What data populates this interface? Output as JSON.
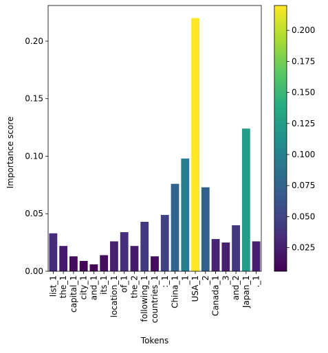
{
  "chart_data": {
    "type": "bar",
    "xlabel": "Tokens",
    "ylabel": "Importance score",
    "ylim": [
      0,
      0.231
    ],
    "yticks": [
      0.0,
      0.05,
      0.1,
      0.15,
      0.2
    ],
    "ytick_labels": [
      "0.00",
      "0.05",
      "0.10",
      "0.15",
      "0.20"
    ],
    "categories": [
      "list_1",
      "the_1",
      "capital_1",
      "city_1",
      "and_1",
      "its_1",
      "location_1",
      "of_1",
      "the_2",
      "following_1",
      "countries_1",
      ":_1",
      "China_1",
      "_1",
      "USA_1",
      "_2",
      "Canada_1",
      "_3",
      "and_2",
      "Japan_1",
      "._1"
    ],
    "values": [
      0.033,
      0.022,
      0.013,
      0.009,
      0.006,
      0.014,
      0.026,
      0.034,
      0.022,
      0.043,
      0.013,
      0.049,
      0.076,
      0.098,
      0.22,
      0.073,
      0.028,
      0.025,
      0.04,
      0.124,
      0.026
    ],
    "colormap": "viridis",
    "colorbar": {
      "range": [
        0.006,
        0.22
      ],
      "ticks": [
        0.025,
        0.05,
        0.075,
        0.1,
        0.125,
        0.15,
        0.175,
        0.2
      ],
      "tick_labels": [
        "0.025",
        "0.050",
        "0.075",
        "0.100",
        "0.125",
        "0.150",
        "0.175",
        "0.200"
      ]
    },
    "grid": false,
    "legend": false
  }
}
